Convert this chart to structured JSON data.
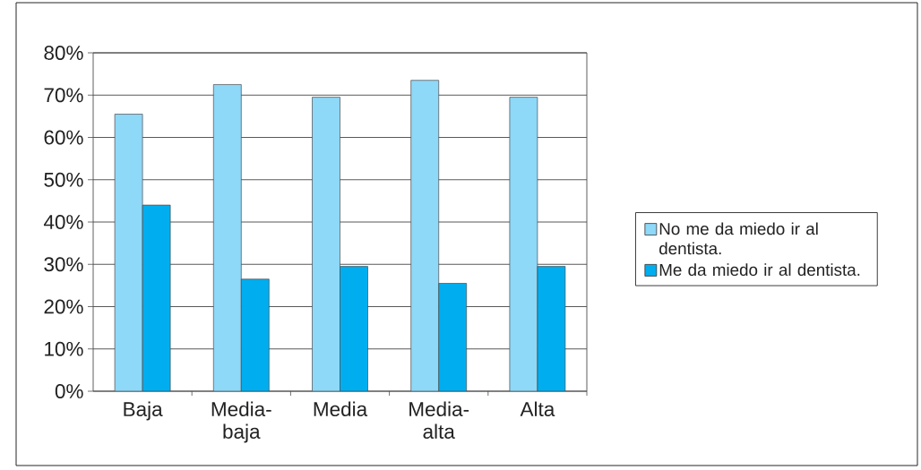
{
  "chart_data": {
    "type": "bar",
    "categories": [
      "Baja",
      "Media-baja",
      "Media",
      "Media-alta",
      "Alta"
    ],
    "series": [
      {
        "name": "No me da miedo ir al dentista.",
        "color": "#8ed8f8",
        "values": [
          65.5,
          72.5,
          69.5,
          73.5,
          69.5
        ]
      },
      {
        "name": "Me da miedo ir al dentista.",
        "color": "#00aeef",
        "values": [
          44,
          26.5,
          29.5,
          25.5,
          29.5
        ]
      }
    ],
    "ylim": [
      0,
      80
    ],
    "yticks": [
      {
        "value": 0,
        "label": "0%"
      },
      {
        "value": 10,
        "label": "10%"
      },
      {
        "value": 20,
        "label": "20%"
      },
      {
        "value": 30,
        "label": "30%"
      },
      {
        "value": 40,
        "label": "40%"
      },
      {
        "value": 50,
        "label": "50%"
      },
      {
        "value": 60,
        "label": "60%"
      },
      {
        "value": 70,
        "label": "70%"
      },
      {
        "value": 80,
        "label": "80%"
      }
    ],
    "grid": "y",
    "legend": "right"
  }
}
